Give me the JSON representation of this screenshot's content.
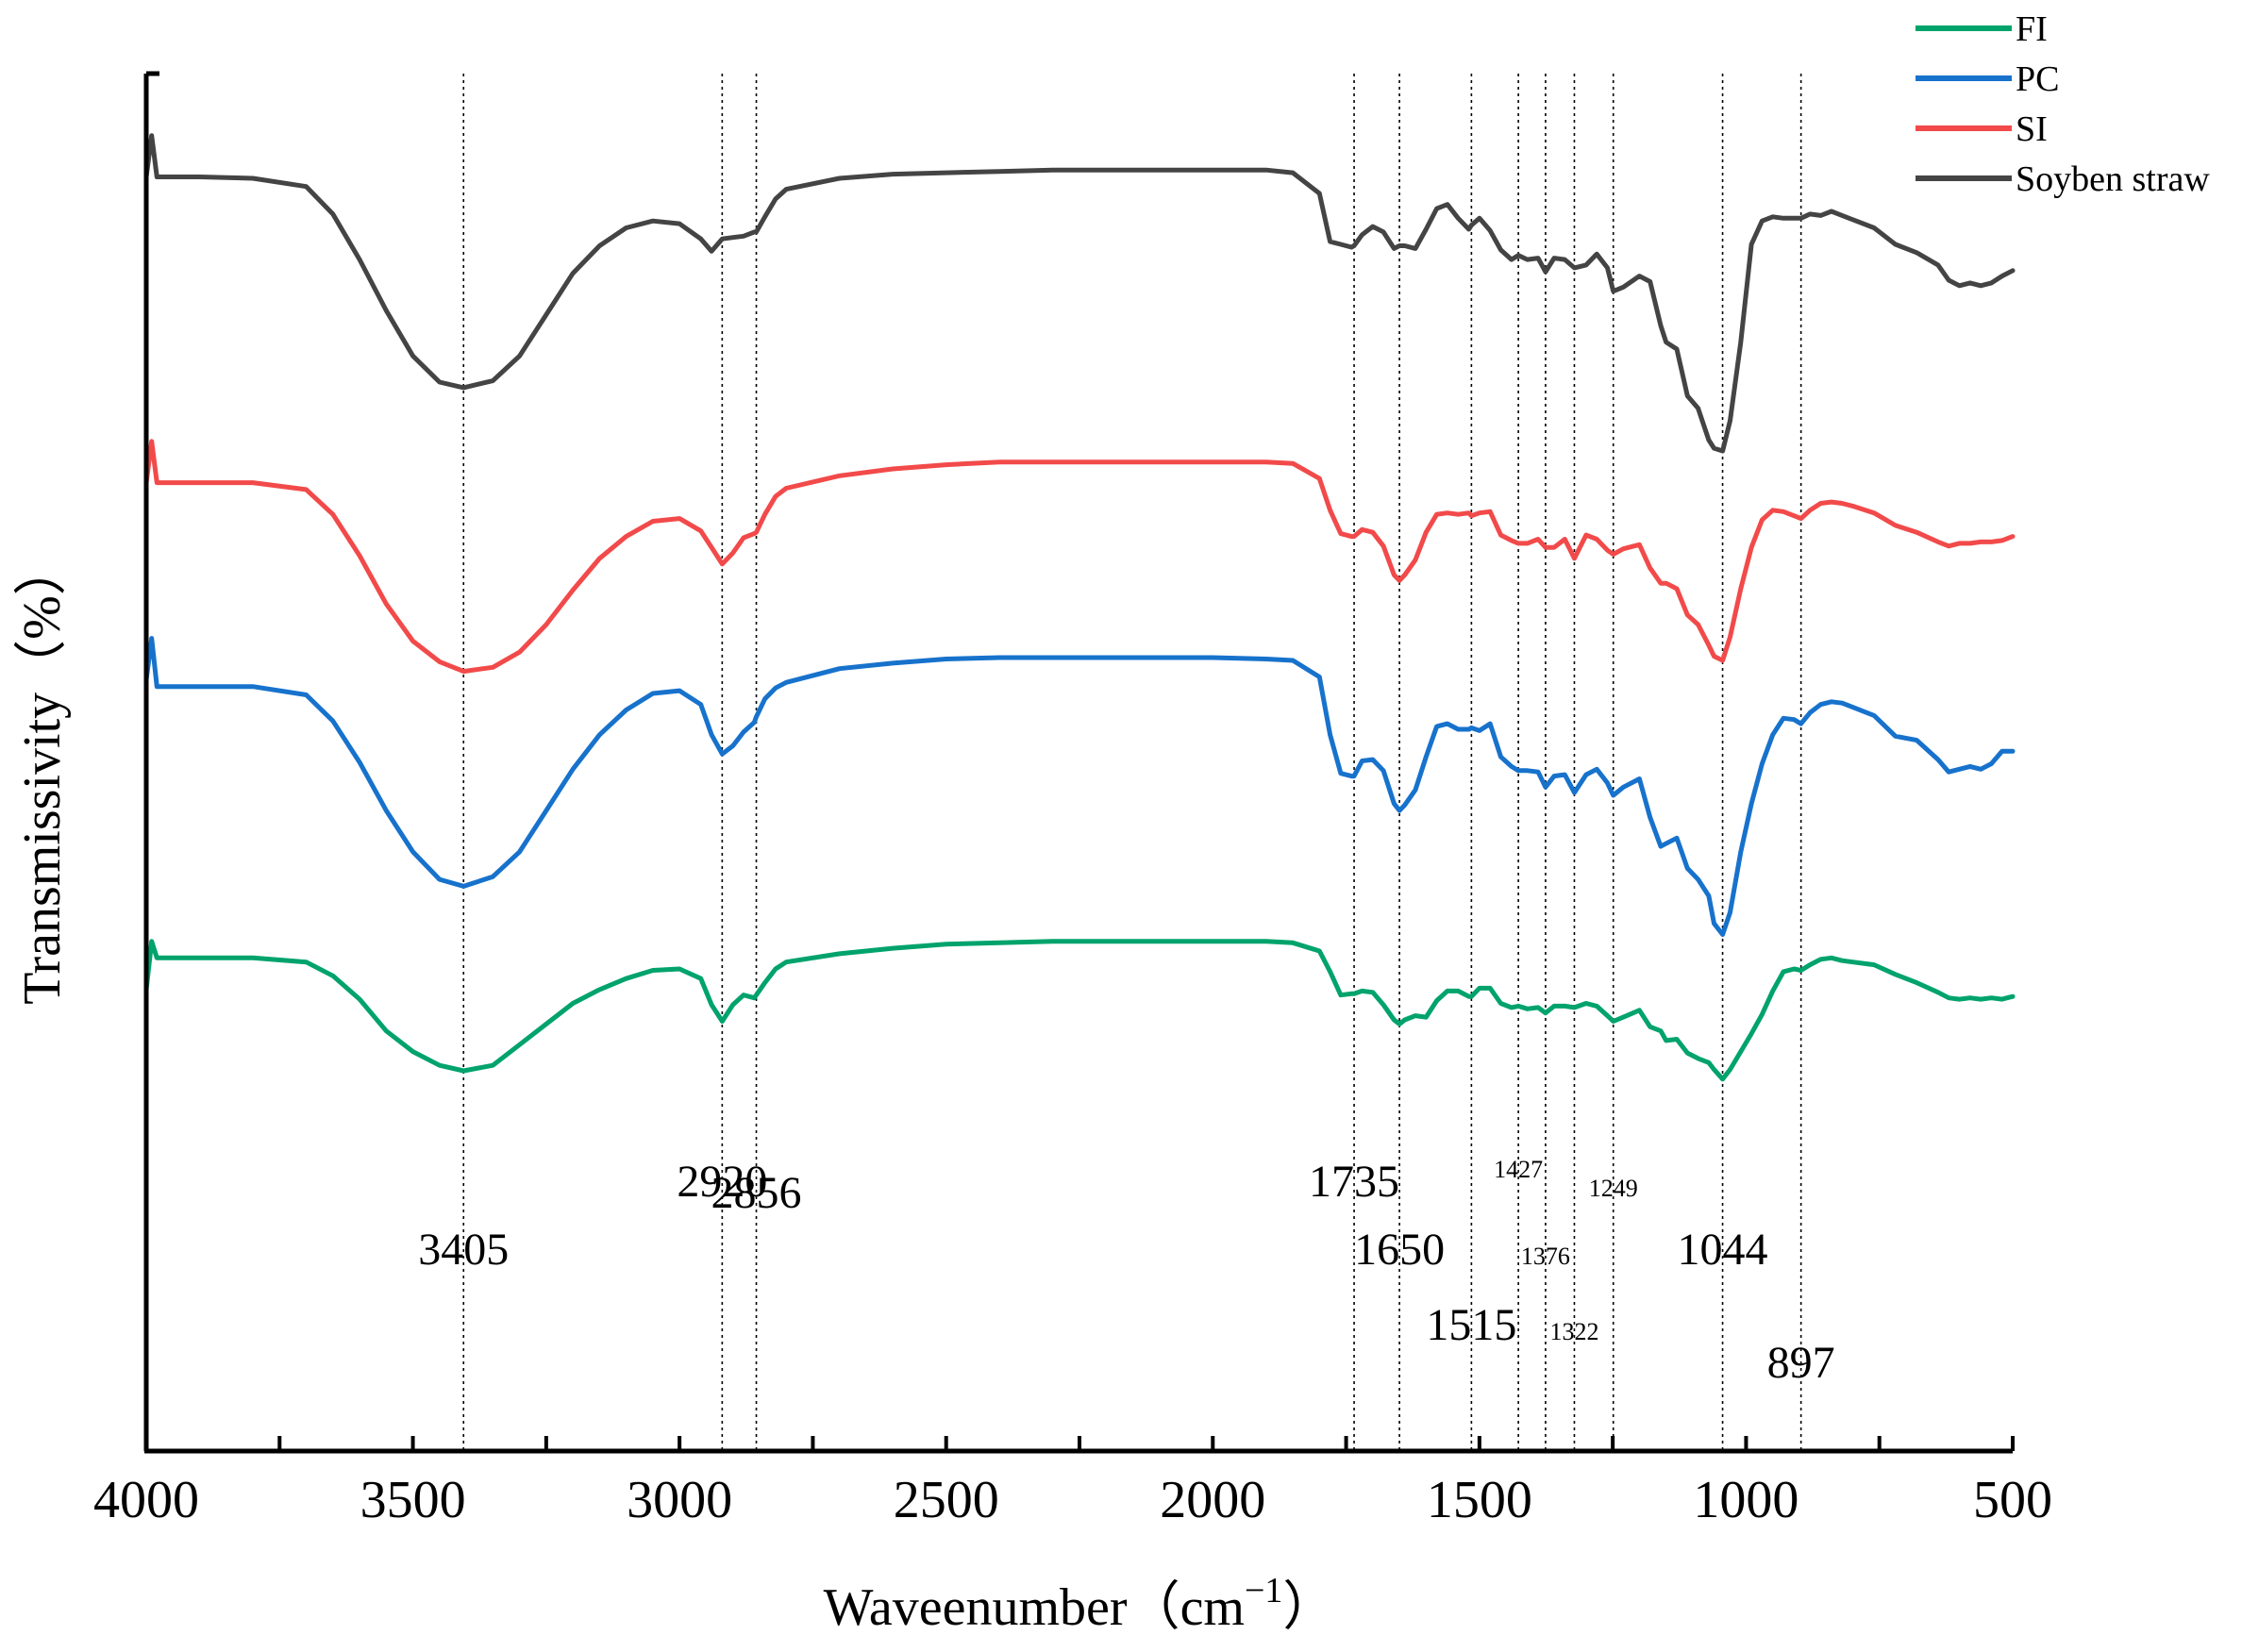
{
  "chart_data": {
    "type": "line",
    "title": "",
    "xlabel": "Waveenumber（cm",
    "xlabel_sup": "−1",
    "xlabel_close": "）",
    "ylabel": "Transmissivity（%）",
    "xlim": [
      4000,
      500
    ],
    "x_reversed": true,
    "ylim": [
      0,
      100
    ],
    "x_ticks": [
      4000,
      3500,
      3000,
      2500,
      2000,
      1500,
      1000,
      500
    ],
    "y_ticks_shown": false,
    "grid": false,
    "legend_position": "top-right",
    "series": [
      {
        "name": "FI",
        "color": "#00a36c",
        "x": [
          4000,
          3990,
          3980,
          3900,
          3800,
          3700,
          3650,
          3600,
          3550,
          3500,
          3450,
          3405,
          3350,
          3300,
          3250,
          3200,
          3150,
          3100,
          3050,
          3000,
          2960,
          2940,
          2920,
          2900,
          2880,
          2860,
          2856,
          2840,
          2820,
          2800,
          2700,
          2600,
          2500,
          2400,
          2300,
          2200,
          2100,
          2000,
          1900,
          1850,
          1800,
          1780,
          1760,
          1740,
          1735,
          1720,
          1700,
          1680,
          1660,
          1650,
          1640,
          1620,
          1600,
          1580,
          1560,
          1540,
          1520,
          1515,
          1500,
          1480,
          1460,
          1440,
          1427,
          1410,
          1390,
          1376,
          1360,
          1340,
          1322,
          1300,
          1280,
          1260,
          1249,
          1230,
          1200,
          1180,
          1160,
          1150,
          1130,
          1110,
          1090,
          1070,
          1060,
          1044,
          1030,
          1010,
          990,
          970,
          950,
          930,
          910,
          897,
          880,
          860,
          840,
          820,
          800,
          760,
          720,
          680,
          640,
          620,
          600,
          580,
          560,
          540,
          520,
          500
        ],
        "y": [
          33.5,
          37.0,
          35.8,
          35.8,
          35.8,
          35.5,
          34.5,
          32.8,
          30.5,
          29.0,
          28.0,
          27.6,
          28.0,
          29.5,
          31.0,
          32.5,
          33.5,
          34.3,
          34.9,
          35.0,
          34.3,
          32.4,
          31.2,
          32.4,
          33.1,
          32.9,
          33.1,
          34.0,
          35.0,
          35.5,
          36.1,
          36.5,
          36.8,
          36.9,
          37.0,
          37.0,
          37.0,
          37.0,
          37.0,
          36.9,
          36.3,
          34.8,
          33.1,
          33.2,
          33.2,
          33.4,
          33.3,
          32.4,
          31.3,
          31.0,
          31.3,
          31.6,
          31.5,
          32.7,
          33.4,
          33.4,
          33.0,
          33.0,
          33.6,
          33.6,
          32.5,
          32.2,
          32.3,
          32.1,
          32.2,
          31.8,
          32.3,
          32.3,
          32.2,
          32.5,
          32.3,
          31.6,
          31.2,
          31.5,
          32.0,
          30.8,
          30.5,
          29.8,
          29.9,
          28.9,
          28.5,
          28.2,
          27.7,
          27.0,
          27.7,
          29.0,
          30.3,
          31.7,
          33.4,
          34.8,
          35.0,
          34.9,
          35.3,
          35.7,
          35.8,
          35.6,
          35.5,
          35.3,
          34.6,
          34.0,
          33.3,
          32.9,
          32.8,
          32.9,
          32.8,
          32.9,
          32.8,
          33.0
        ]
      },
      {
        "name": "PC",
        "color": "#1772cc",
        "x": [
          4000,
          3990,
          3980,
          3900,
          3800,
          3700,
          3650,
          3600,
          3550,
          3500,
          3450,
          3405,
          3350,
          3300,
          3250,
          3200,
          3150,
          3100,
          3050,
          3000,
          2960,
          2940,
          2920,
          2900,
          2880,
          2860,
          2856,
          2840,
          2820,
          2800,
          2700,
          2600,
          2500,
          2400,
          2300,
          2200,
          2100,
          2000,
          1900,
          1850,
          1800,
          1780,
          1760,
          1740,
          1735,
          1720,
          1700,
          1680,
          1660,
          1650,
          1640,
          1620,
          1600,
          1580,
          1560,
          1540,
          1520,
          1515,
          1500,
          1480,
          1460,
          1440,
          1427,
          1410,
          1390,
          1376,
          1360,
          1340,
          1322,
          1300,
          1280,
          1260,
          1249,
          1230,
          1200,
          1180,
          1160,
          1150,
          1130,
          1110,
          1090,
          1070,
          1060,
          1044,
          1030,
          1010,
          990,
          970,
          950,
          930,
          910,
          897,
          880,
          860,
          840,
          820,
          800,
          760,
          720,
          680,
          640,
          620,
          600,
          580,
          560,
          540,
          520,
          500
        ],
        "y": [
          56.0,
          59.0,
          55.5,
          55.5,
          55.5,
          54.9,
          53.0,
          50.0,
          46.5,
          43.5,
          41.5,
          41.0,
          41.7,
          43.5,
          46.5,
          49.5,
          52.0,
          53.8,
          55.0,
          55.2,
          54.2,
          52.0,
          50.6,
          51.2,
          52.2,
          52.9,
          53.3,
          54.6,
          55.4,
          55.8,
          56.8,
          57.2,
          57.5,
          57.6,
          57.6,
          57.6,
          57.6,
          57.6,
          57.5,
          57.4,
          56.2,
          52.0,
          49.2,
          49.0,
          49.0,
          50.1,
          50.2,
          49.4,
          47.0,
          46.5,
          46.9,
          48.0,
          50.4,
          52.6,
          52.8,
          52.4,
          52.4,
          52.5,
          52.3,
          52.8,
          50.4,
          49.7,
          49.4,
          49.4,
          49.3,
          48.2,
          49.0,
          49.1,
          47.8,
          49.1,
          49.5,
          48.5,
          47.6,
          48.2,
          48.8,
          46.0,
          43.9,
          44.1,
          44.5,
          42.3,
          41.5,
          40.3,
          38.3,
          37.5,
          39.1,
          43.5,
          47.0,
          49.9,
          52.0,
          53.2,
          53.1,
          52.8,
          53.6,
          54.2,
          54.4,
          54.3,
          54.0,
          53.4,
          51.9,
          51.6,
          50.2,
          49.3,
          49.5,
          49.7,
          49.5,
          49.9,
          50.8,
          50.8
        ]
      },
      {
        "name": "SI",
        "color": "#f24a4a",
        "x": [
          4000,
          3990,
          3980,
          3900,
          3800,
          3700,
          3650,
          3600,
          3550,
          3500,
          3450,
          3405,
          3350,
          3300,
          3250,
          3200,
          3150,
          3100,
          3050,
          3000,
          2960,
          2940,
          2920,
          2900,
          2880,
          2860,
          2856,
          2840,
          2820,
          2800,
          2700,
          2600,
          2500,
          2400,
          2300,
          2200,
          2100,
          2000,
          1900,
          1850,
          1800,
          1780,
          1760,
          1740,
          1735,
          1720,
          1700,
          1680,
          1660,
          1650,
          1640,
          1620,
          1600,
          1580,
          1560,
          1540,
          1520,
          1515,
          1500,
          1480,
          1460,
          1440,
          1427,
          1410,
          1390,
          1376,
          1360,
          1340,
          1322,
          1300,
          1280,
          1260,
          1249,
          1230,
          1200,
          1180,
          1160,
          1150,
          1130,
          1110,
          1090,
          1070,
          1060,
          1044,
          1030,
          1010,
          990,
          970,
          950,
          930,
          910,
          897,
          880,
          860,
          840,
          820,
          800,
          760,
          720,
          680,
          640,
          620,
          600,
          580,
          560,
          540,
          520,
          500
        ],
        "y": [
          70.3,
          73.3,
          70.3,
          70.3,
          70.3,
          69.8,
          68.0,
          65.0,
          61.5,
          58.8,
          57.3,
          56.6,
          56.9,
          58.0,
          60.0,
          62.5,
          64.8,
          66.4,
          67.5,
          67.7,
          66.8,
          65.6,
          64.4,
          65.2,
          66.3,
          66.6,
          66.7,
          68.0,
          69.3,
          69.9,
          70.8,
          71.3,
          71.6,
          71.8,
          71.8,
          71.8,
          71.8,
          71.8,
          71.8,
          71.7,
          70.6,
          68.3,
          66.6,
          66.4,
          66.4,
          66.9,
          66.7,
          65.7,
          63.6,
          63.2,
          63.6,
          64.7,
          66.7,
          68.0,
          68.1,
          68.0,
          68.1,
          67.9,
          68.1,
          68.2,
          66.5,
          66.1,
          65.9,
          65.9,
          66.2,
          65.6,
          65.6,
          66.2,
          64.8,
          66.5,
          66.2,
          65.4,
          65.1,
          65.5,
          65.8,
          64.1,
          63.0,
          63.0,
          62.6,
          60.7,
          60.0,
          58.5,
          57.7,
          57.4,
          59.1,
          62.6,
          65.6,
          67.6,
          68.3,
          68.2,
          67.9,
          67.7,
          68.3,
          68.8,
          68.9,
          68.8,
          68.6,
          68.1,
          67.2,
          66.7,
          66.0,
          65.7,
          65.9,
          65.9,
          66.0,
          66.0,
          66.1,
          66.4
        ]
      },
      {
        "name": "Soyben straw",
        "color": "#444444",
        "x": [
          4000,
          3990,
          3980,
          3900,
          3800,
          3700,
          3650,
          3600,
          3550,
          3500,
          3450,
          3405,
          3350,
          3300,
          3250,
          3200,
          3150,
          3100,
          3050,
          3000,
          2960,
          2940,
          2920,
          2900,
          2880,
          2860,
          2856,
          2840,
          2820,
          2800,
          2700,
          2600,
          2500,
          2400,
          2300,
          2200,
          2100,
          2000,
          1900,
          1850,
          1800,
          1780,
          1760,
          1740,
          1735,
          1720,
          1700,
          1680,
          1660,
          1650,
          1640,
          1620,
          1600,
          1580,
          1560,
          1540,
          1520,
          1515,
          1500,
          1480,
          1460,
          1440,
          1427,
          1410,
          1390,
          1376,
          1360,
          1340,
          1322,
          1300,
          1280,
          1260,
          1249,
          1230,
          1200,
          1180,
          1160,
          1150,
          1130,
          1110,
          1090,
          1070,
          1060,
          1044,
          1030,
          1010,
          990,
          970,
          950,
          930,
          910,
          897,
          880,
          860,
          840,
          820,
          800,
          760,
          720,
          680,
          640,
          620,
          600,
          580,
          560,
          540,
          520,
          500
        ],
        "y": [
          92.5,
          95.5,
          92.5,
          92.5,
          92.4,
          91.8,
          89.8,
          86.5,
          82.8,
          79.5,
          77.6,
          77.2,
          77.7,
          79.5,
          82.5,
          85.5,
          87.5,
          88.8,
          89.3,
          89.1,
          88.0,
          87.1,
          88.0,
          88.1,
          88.2,
          88.5,
          88.5,
          89.6,
          90.9,
          91.6,
          92.4,
          92.7,
          92.8,
          92.9,
          93.0,
          93.0,
          93.0,
          93.0,
          93.0,
          92.8,
          91.3,
          87.8,
          87.6,
          87.4,
          87.5,
          88.3,
          88.9,
          88.5,
          87.3,
          87.5,
          87.5,
          87.3,
          88.7,
          90.2,
          90.5,
          89.5,
          88.7,
          89.0,
          89.5,
          88.6,
          87.2,
          86.5,
          86.8,
          86.5,
          86.6,
          85.6,
          86.6,
          86.5,
          85.9,
          86.1,
          86.9,
          85.9,
          84.2,
          84.5,
          85.3,
          84.9,
          81.7,
          80.5,
          80.0,
          76.6,
          75.7,
          73.4,
          72.8,
          72.6,
          74.8,
          80.5,
          87.6,
          89.3,
          89.6,
          89.5,
          89.5,
          89.5,
          89.8,
          89.7,
          90.0,
          89.7,
          89.4,
          88.8,
          87.6,
          87.0,
          86.1,
          85.0,
          84.6,
          84.8,
          84.6,
          84.8,
          85.3,
          85.7
        ]
      }
    ],
    "reference_lines": [
      {
        "x": 3405,
        "label": "3405",
        "size": "large",
        "level": 4
      },
      {
        "x": 2920,
        "label": "2920",
        "size": "large",
        "level": 2
      },
      {
        "x": 2856,
        "label": "2856",
        "size": "large",
        "level": 3
      },
      {
        "x": 1735,
        "label": "1735",
        "size": "large",
        "level": 2
      },
      {
        "x": 1650,
        "label": "1650",
        "size": "large",
        "level": 4
      },
      {
        "x": 1515,
        "label": "1515",
        "size": "large",
        "level": 5
      },
      {
        "x": 1427,
        "label": "1427",
        "size": "small",
        "level": 1
      },
      {
        "x": 1376,
        "label": "1376",
        "size": "small",
        "level": 4
      },
      {
        "x": 1322,
        "label": "1322",
        "size": "small",
        "level": 5
      },
      {
        "x": 1249,
        "label": "1249",
        "size": "small",
        "level": 2
      },
      {
        "x": 1044,
        "label": "1044",
        "size": "large",
        "level": 4
      },
      {
        "x": 897,
        "label": "897",
        "size": "large",
        "level": 6
      }
    ]
  }
}
